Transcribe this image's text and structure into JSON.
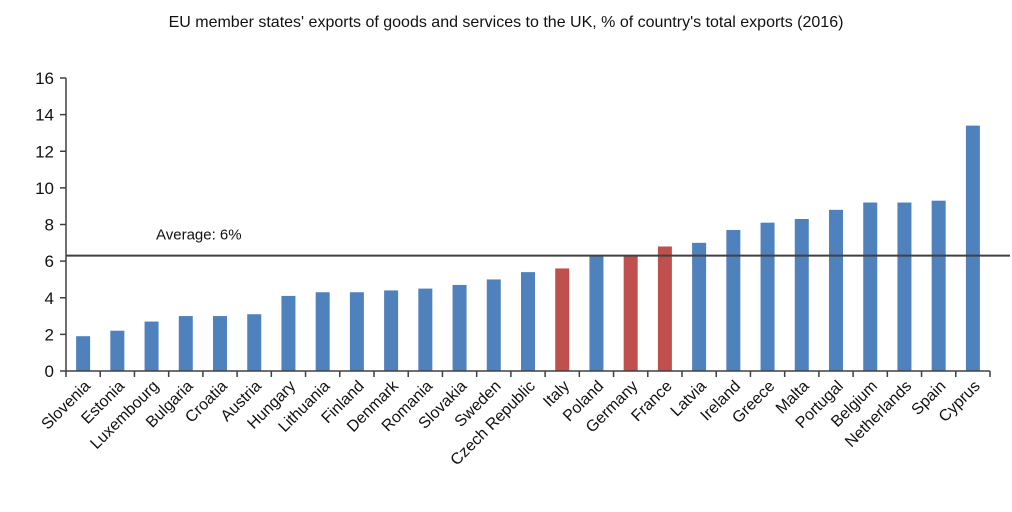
{
  "chart_data": {
    "type": "bar",
    "title": "EU member states' exports of goods and services to the UK, % of country's total exports (2016)",
    "xlabel": "",
    "ylabel": "",
    "ylim": [
      0,
      16
    ],
    "yticks": [
      0,
      2,
      4,
      6,
      8,
      10,
      12,
      14,
      16
    ],
    "grid": false,
    "categories": [
      "Slovenia",
      "Estonia",
      "Luxembourg",
      "Bulgaria",
      "Croatia",
      "Austria",
      "Hungary",
      "Lithuania",
      "Finland",
      "Denmark",
      "Romania",
      "Slovakia",
      "Sweden",
      "Czech Republic",
      "Italy",
      "Poland",
      "Germany",
      "France",
      "Latvia",
      "Ireland",
      "Greece",
      "Malta",
      "Portugal",
      "Belgium",
      "Netherlands",
      "Spain",
      "Cyprus"
    ],
    "values": [
      1.9,
      2.2,
      2.7,
      3.0,
      3.0,
      3.1,
      4.1,
      4.3,
      4.3,
      4.4,
      4.5,
      4.7,
      5.0,
      5.4,
      5.6,
      6.3,
      6.3,
      6.8,
      7.0,
      7.7,
      8.1,
      8.3,
      8.8,
      9.2,
      9.2,
      9.3,
      13.4
    ],
    "highlight": [
      "Italy",
      "Germany",
      "France"
    ],
    "colors": {
      "default": "#4F81BD",
      "highlight": "#C0504D",
      "reference_line": "#404040",
      "axis": "#404040"
    },
    "reference_line": {
      "value": 6.3,
      "label": "Average: 6%"
    }
  }
}
